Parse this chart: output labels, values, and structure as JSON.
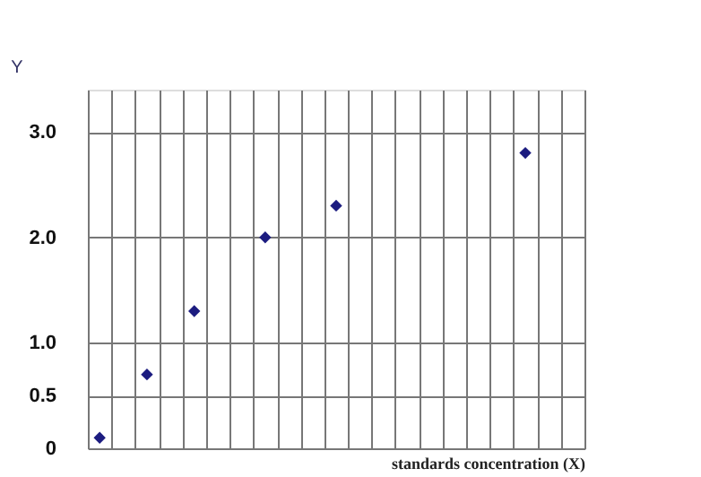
{
  "chart_data": {
    "type": "scatter",
    "xlabel": "standards concentration (X)",
    "ylabel": "Y",
    "categories": [
      null,
      null,
      null,
      null,
      null,
      null,
      null,
      null,
      null,
      null,
      null,
      null,
      null,
      null,
      null,
      null,
      null,
      null,
      null,
      null,
      null
    ],
    "series": [
      {
        "color": "#1c1c80",
        "values": [
          0.1,
          null,
          0.7,
          null,
          1.3,
          null,
          null,
          null,
          null,
          null,
          null,
          null,
          null,
          null,
          null,
          null,
          null,
          null,
          null,
          null,
          null
        ]
      },
      {
        "color": "#1c1c80",
        "values": [
          null,
          null,
          null,
          null,
          null,
          null,
          null,
          2.0,
          null,
          null,
          2.3,
          null,
          null,
          null,
          null,
          null,
          null,
          null,
          2.8,
          null,
          null
        ]
      }
    ],
    "ylim": [
      0,
      3.4
    ],
    "yticks": [
      0,
      0.5,
      {
        "value": 1.0,
        "label": "1.0"
      },
      {
        "value": 2.0,
        "label": "2.0"
      },
      {
        "value": 3.0,
        "label": "3.0"
      }
    ],
    "tick_labels": "y",
    "grid": true,
    "marker": "diamond"
  }
}
